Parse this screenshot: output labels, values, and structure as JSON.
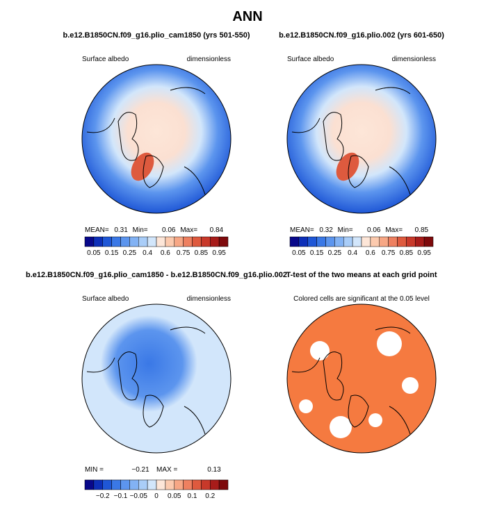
{
  "title": "ANN",
  "panels": [
    {
      "title": "b.e12.B1850CN.f09_g16.plio_cam1850 (yrs 501-550)",
      "left_label": "Surface albedo",
      "right_label": "dimensionless",
      "stats": [
        "MEAN=",
        "0.31",
        "Min=",
        "0.06",
        "Max=",
        "0.84"
      ]
    },
    {
      "title": "b.e12.B1850CN.f09_g16.plio.002 (yrs 601-650)",
      "left_label": "Surface albedo",
      "right_label": "dimensionless",
      "stats": [
        "MEAN=",
        "0.32",
        "Min=",
        "0.06",
        "Max=",
        "0.85"
      ]
    },
    {
      "title": "b.e12.B1850CN.f09_g16.plio_cam1850 - b.e12.B1850CN.f09_g16.plio.002",
      "left_label": "Surface albedo",
      "right_label": "dimensionless",
      "stats": [
        "MIN =",
        "−0.21",
        "MAX =",
        "0.13"
      ]
    },
    {
      "title": "T-test of the two means at each grid point",
      "subtitle": "Colored cells are significant at the 0.05 level"
    }
  ],
  "colorbars": [
    {
      "colors": [
        "#08088a",
        "#0d2fb8",
        "#1f57d6",
        "#3a78e6",
        "#5c95ee",
        "#82b2f4",
        "#a9cdf8",
        "#d2e6fb",
        "#fde6d8",
        "#fccaae",
        "#f7a785",
        "#ee8060",
        "#de5a3e",
        "#c8392a",
        "#a71c1a",
        "#7e0a0c"
      ],
      "labels": [
        "0.05",
        "0.15",
        "0.25",
        "0.4",
        "0.6",
        "0.75",
        "0.85",
        "0.95"
      ]
    },
    {
      "colors": [
        "#08088a",
        "#0d2fb8",
        "#1f57d6",
        "#3a78e6",
        "#5c95ee",
        "#82b2f4",
        "#a9cdf8",
        "#d2e6fb",
        "#fde6d8",
        "#fccaae",
        "#f7a785",
        "#ee8060",
        "#de5a3e",
        "#c8392a",
        "#a71c1a",
        "#7e0a0c"
      ],
      "labels": [
        "0.05",
        "0.15",
        "0.25",
        "0.4",
        "0.6",
        "0.75",
        "0.85",
        "0.95"
      ]
    },
    {
      "colors": [
        "#08088a",
        "#0d2fb8",
        "#1f57d6",
        "#3a78e6",
        "#5c95ee",
        "#82b2f4",
        "#a9cdf8",
        "#d2e6fb",
        "#fde6d8",
        "#fccaae",
        "#f7a785",
        "#ee8060",
        "#de5a3e",
        "#c8392a",
        "#a71c1a",
        "#7e0a0c"
      ],
      "labels": [
        "−0.2",
        "−0.1",
        "−0.05",
        "0",
        "0.05",
        "0.1",
        "0.2"
      ]
    }
  ]
}
